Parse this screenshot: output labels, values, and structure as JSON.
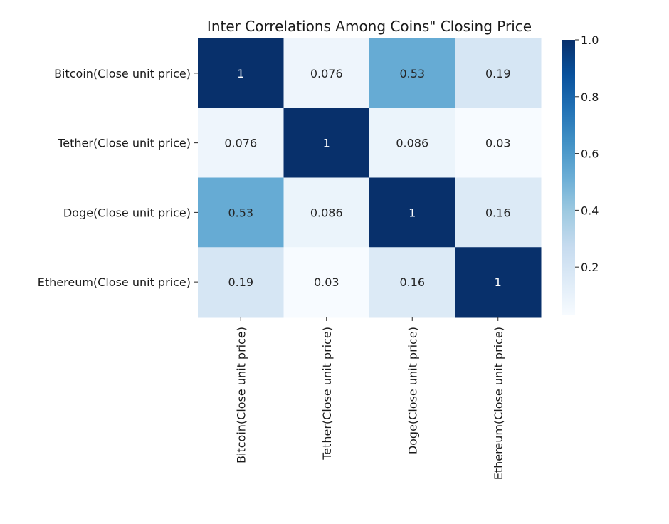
{
  "chart_data": {
    "type": "heatmap",
    "title": "Inter Correlations Among Coins\" Closing Price",
    "rows": [
      "Bitcoin(Close unit price)",
      "Tether(Close unit price)",
      "Doge(Close unit price)",
      "Ethereum(Close unit price)"
    ],
    "columns": [
      "Bitcoin(Close unit price)",
      "Tether(Close unit price)",
      "Doge(Close unit price)",
      "Ethereum(Close unit price)"
    ],
    "values": [
      [
        1,
        0.076,
        0.53,
        0.19
      ],
      [
        0.076,
        1,
        0.086,
        0.03
      ],
      [
        0.53,
        0.086,
        1,
        0.16
      ],
      [
        0.19,
        0.03,
        0.16,
        1
      ]
    ],
    "annotations": [
      [
        "1",
        "0.076",
        "0.53",
        "0.19"
      ],
      [
        "0.076",
        "1",
        "0.086",
        "0.03"
      ],
      [
        "0.53",
        "0.086",
        "1",
        "0.16"
      ],
      [
        "0.19",
        "0.03",
        "0.16",
        "1"
      ]
    ],
    "colormap": "Blues",
    "colorbar": {
      "range": [
        0.03,
        1.0
      ],
      "ticks": [
        0.2,
        0.4,
        0.6,
        0.8,
        1.0
      ],
      "tick_labels": [
        "0.2",
        "0.4",
        "0.6",
        "0.8",
        "1.0"
      ]
    },
    "legend": "colorbar-right",
    "grid": false
  }
}
